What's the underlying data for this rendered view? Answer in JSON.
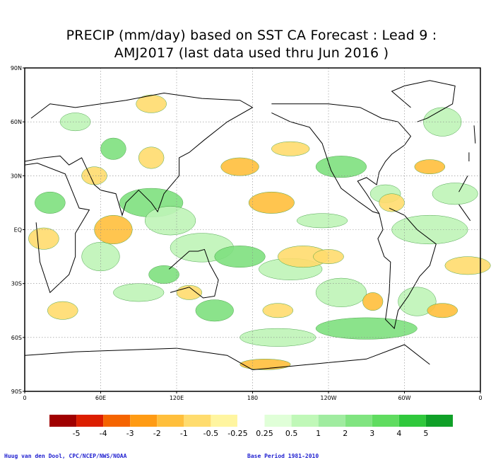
{
  "title": {
    "line1": "PRECIP (mm/day) based on SST CA Forecast : Lead 9 :",
    "line2": "AMJ2017 (last data used thru Jun 2016 )"
  },
  "axes": {
    "lat_labels": [
      "90N",
      "60N",
      "30N",
      "EQ",
      "30S",
      "60S",
      "90S"
    ],
    "lon_labels": [
      "0",
      "60E",
      "120E",
      "180",
      "120W",
      "60W",
      "0"
    ]
  },
  "legend": {
    "colors": [
      "#a00000",
      "#dc1e00",
      "#f56400",
      "#ff9b14",
      "#ffbf3c",
      "#ffdc6e",
      "#fff5a0",
      "#ffffff",
      "#e0ffd8",
      "#c0f8b8",
      "#a0eca0",
      "#80e480",
      "#60dc60",
      "#30c83c",
      "#10a028"
    ],
    "labels": [
      "-5",
      "-4",
      "-3",
      "-2",
      "-1",
      "-0.5",
      "-0.25",
      "0.25",
      "0.5",
      "1",
      "2",
      "3",
      "4",
      "5"
    ]
  },
  "footer": {
    "credit": "Huug van den Dool, CPC/NCEP/NWS/NOAA",
    "base_period": "Base Period 1981-2010"
  },
  "colors": {
    "land_outline": "#000000",
    "positive_fill": "#bff5b8",
    "positive_strong": "#7fe07f",
    "negative_fill": "#ffdc6e",
    "negative_strong": "#ffbf3c",
    "credit_text": "#1f1fd0"
  }
}
